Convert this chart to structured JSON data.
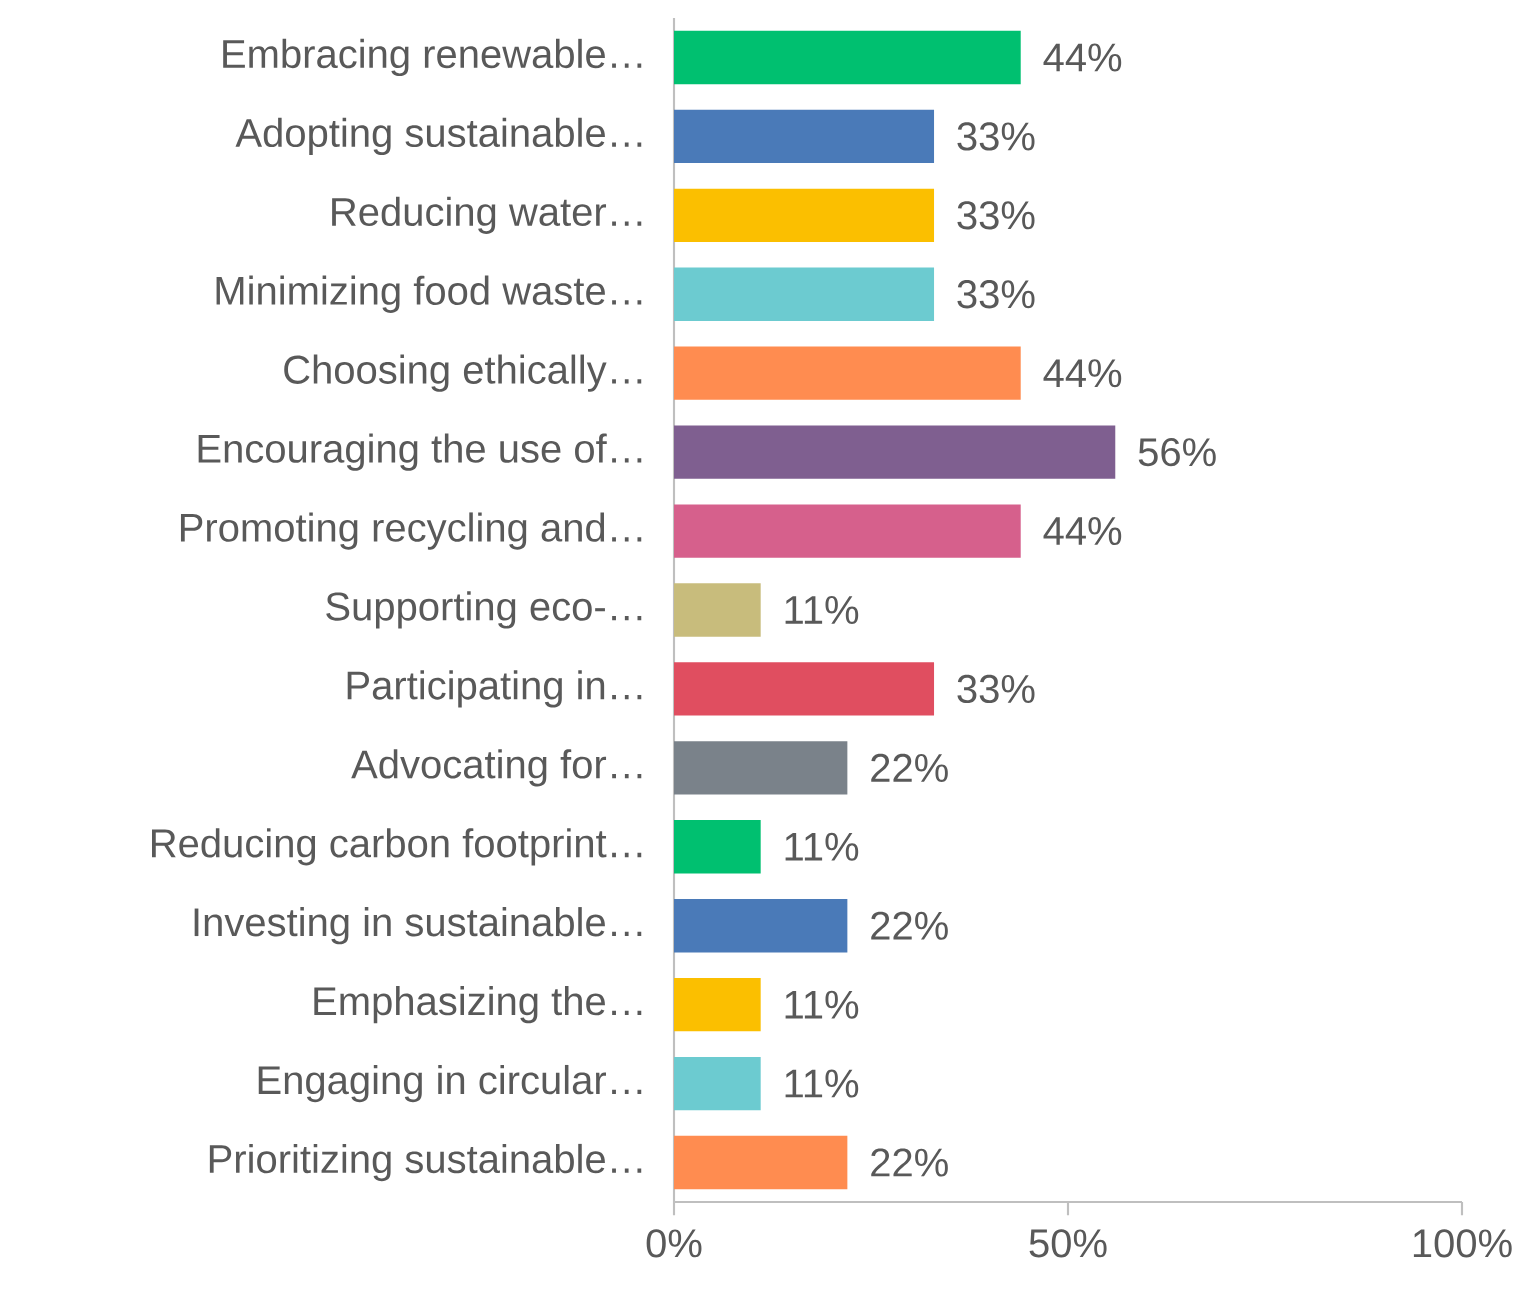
{
  "chart_data": {
    "type": "bar",
    "orientation": "horizontal",
    "categories": [
      "Embracing renewable…",
      "Adopting sustainable…",
      "Reducing water…",
      "Minimizing food waste…",
      "Choosing ethically…",
      "Encouraging the use of…",
      "Promoting recycling and…",
      "Supporting eco-…",
      "Participating in…",
      "Advocating for…",
      "Reducing carbon footprint…",
      "Investing in sustainable…",
      "Emphasizing the…",
      "Engaging in circular…",
      "Prioritizing sustainable…"
    ],
    "values": [
      44,
      33,
      33,
      33,
      44,
      56,
      44,
      11,
      33,
      22,
      11,
      22,
      11,
      11,
      22
    ],
    "value_labels": [
      "44%",
      "33%",
      "33%",
      "33%",
      "44%",
      "56%",
      "44%",
      "11%",
      "33%",
      "22%",
      "11%",
      "22%",
      "11%",
      "11%",
      "22%"
    ],
    "colors": [
      "#00c070",
      "#4a7ab8",
      "#fbbf00",
      "#6ccbd0",
      "#ff8c50",
      "#7f5f90",
      "#d6608c",
      "#c8bc7c",
      "#e04e60",
      "#7a828a",
      "#00c070",
      "#4a7ab8",
      "#fbbf00",
      "#6ccbd0",
      "#ff8c50"
    ],
    "xlim": [
      0,
      100
    ],
    "xticks": [
      {
        "value": 0,
        "label": "0%"
      },
      {
        "value": 50,
        "label": "50%"
      },
      {
        "value": 100,
        "label": "100%"
      }
    ]
  }
}
